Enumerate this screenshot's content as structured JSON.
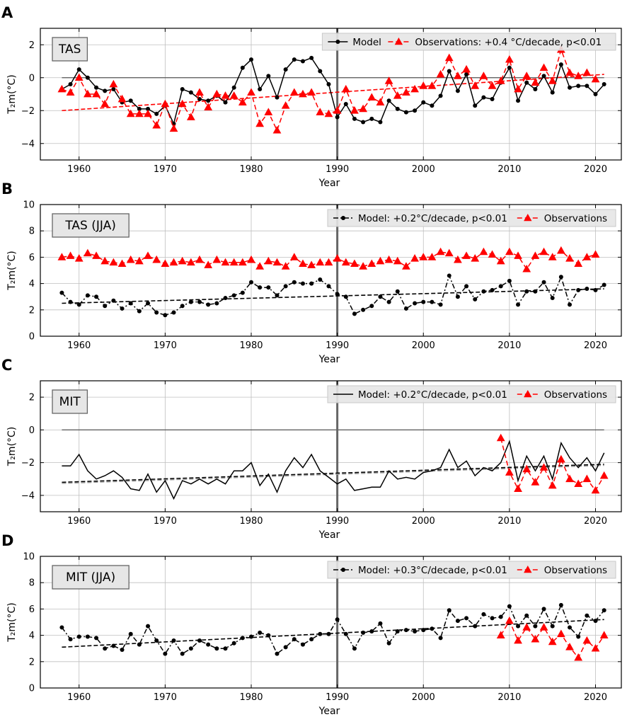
{
  "x_axis_label": "Year",
  "y_axis_label": "T₂m(°C)",
  "colors": {
    "model": "#000000",
    "observations": "#ff0000",
    "vline": "#666666",
    "grid": "#bfbfbf"
  },
  "chart_data": [
    {
      "panel": "A",
      "tag": "TAS",
      "type": "line",
      "xlabel": "Year",
      "ylabel": "T₂m(°C)",
      "xlim": [
        1955.5,
        2023
      ],
      "ylim": [
        -5,
        3
      ],
      "xticks": [
        1960,
        1970,
        1980,
        1990,
        2000,
        2010,
        2020
      ],
      "yticks": [
        -4,
        -2,
        0,
        2
      ],
      "zero_line": true,
      "vline": 1990,
      "legend": [
        "Model",
        "Observations: +0.4 °C/decade, p<0.01"
      ],
      "legend_placement": "top-right",
      "x": [
        1958,
        1959,
        1960,
        1961,
        1962,
        1963,
        1964,
        1965,
        1966,
        1967,
        1968,
        1969,
        1970,
        1971,
        1972,
        1973,
        1974,
        1975,
        1976,
        1977,
        1978,
        1979,
        1980,
        1981,
        1982,
        1983,
        1984,
        1985,
        1986,
        1987,
        1988,
        1989,
        1990,
        1991,
        1992,
        1993,
        1994,
        1995,
        1996,
        1997,
        1998,
        1999,
        2000,
        2001,
        2002,
        2003,
        2004,
        2005,
        2006,
        2007,
        2008,
        2009,
        2010,
        2011,
        2012,
        2013,
        2014,
        2015,
        2016,
        2017,
        2018,
        2019,
        2020,
        2021
      ],
      "series": [
        {
          "name": "Model",
          "style": "solid",
          "marker": "circle",
          "values": [
            -0.7,
            -0.4,
            0.5,
            0.0,
            -0.6,
            -0.8,
            -0.7,
            -1.5,
            -1.4,
            -1.9,
            -1.9,
            -2.2,
            -1.7,
            -2.8,
            -0.7,
            -0.9,
            -1.3,
            -1.4,
            -1.1,
            -1.5,
            -0.6,
            0.6,
            1.1,
            -0.7,
            0.1,
            -1.2,
            0.5,
            1.1,
            1.0,
            1.2,
            0.4,
            -0.4,
            -2.4,
            -1.6,
            -2.5,
            -2.7,
            -2.5,
            -2.7,
            -1.4,
            -1.9,
            -2.1,
            -2.0,
            -1.5,
            -1.7,
            -1.1,
            0.4,
            -0.8,
            0.2,
            -1.7,
            -1.2,
            -1.3,
            -0.3,
            0.6,
            -1.4,
            -0.3,
            -0.7,
            0.1,
            -0.9,
            0.8,
            -0.6,
            -0.5,
            -0.5,
            -1.0,
            -0.4
          ]
        },
        {
          "name": "Observations",
          "style": "dashed",
          "marker": "triangle",
          "values": [
            -0.7,
            -0.9,
            0.0,
            -1.0,
            -1.0,
            -1.6,
            -0.4,
            -1.3,
            -2.2,
            -2.2,
            -2.2,
            -2.9,
            -1.6,
            -3.1,
            -1.6,
            -2.4,
            -0.9,
            -1.8,
            -1.0,
            -1.1,
            -1.1,
            -1.5,
            -0.9,
            -2.8,
            -2.1,
            -3.2,
            -1.7,
            -0.9,
            -1.0,
            -0.9,
            -2.1,
            -2.2,
            -2.0,
            -0.7,
            -2.0,
            -1.9,
            -1.2,
            -1.5,
            -0.2,
            -1.1,
            -0.9,
            -0.7,
            -0.5,
            -0.5,
            0.2,
            1.2,
            0.1,
            0.5,
            -0.5,
            0.1,
            -0.5,
            -0.2,
            1.1,
            -0.7,
            0.1,
            -0.3,
            0.6,
            -0.2,
            1.7,
            0.3,
            0.1,
            0.3,
            -0.1,
            null
          ]
        }
      ],
      "trend": {
        "series": "Observations",
        "start": [
          1958,
          -2.0
        ],
        "end": [
          2021,
          0.2
        ]
      }
    },
    {
      "panel": "B",
      "tag": "TAS (JJA)",
      "type": "line",
      "xlabel": "Year",
      "ylabel": "T₂m(°C)",
      "xlim": [
        1955.5,
        2023
      ],
      "ylim": [
        0,
        10
      ],
      "xticks": [
        1960,
        1970,
        1980,
        1990,
        2000,
        2010,
        2020
      ],
      "yticks": [
        0,
        2,
        4,
        6,
        8,
        10
      ],
      "zero_line": false,
      "vline": 1990,
      "legend": [
        "Model: +0.2°C/decade, p<0.01",
        "Observations"
      ],
      "legend_placement": "top-right",
      "x": [
        1958,
        1959,
        1960,
        1961,
        1962,
        1963,
        1964,
        1965,
        1966,
        1967,
        1968,
        1969,
        1970,
        1971,
        1972,
        1973,
        1974,
        1975,
        1976,
        1977,
        1978,
        1979,
        1980,
        1981,
        1982,
        1983,
        1984,
        1985,
        1986,
        1987,
        1988,
        1989,
        1990,
        1991,
        1992,
        1993,
        1994,
        1995,
        1996,
        1997,
        1998,
        1999,
        2000,
        2001,
        2002,
        2003,
        2004,
        2005,
        2006,
        2007,
        2008,
        2009,
        2010,
        2011,
        2012,
        2013,
        2014,
        2015,
        2016,
        2017,
        2018,
        2019,
        2020,
        2021
      ],
      "series": [
        {
          "name": "Model",
          "style": "dashdot",
          "marker": "circle",
          "values": [
            3.3,
            2.6,
            2.4,
            3.1,
            3.0,
            2.3,
            2.7,
            2.1,
            2.5,
            1.9,
            2.5,
            1.8,
            1.6,
            1.8,
            2.3,
            2.6,
            2.6,
            2.4,
            2.5,
            2.9,
            3.1,
            3.3,
            4.1,
            3.7,
            3.7,
            3.1,
            3.8,
            4.1,
            4.0,
            4.0,
            4.3,
            3.8,
            3.2,
            3.0,
            1.7,
            2.0,
            2.3,
            3.0,
            2.6,
            3.4,
            2.1,
            2.5,
            2.6,
            2.6,
            2.4,
            4.6,
            3.0,
            3.8,
            2.8,
            3.4,
            3.5,
            3.8,
            4.2,
            2.4,
            3.4,
            3.4,
            4.1,
            2.9,
            4.5,
            2.4,
            3.5,
            3.6,
            3.5,
            3.9
          ]
        },
        {
          "name": "Observations",
          "style": "dashed",
          "marker": "triangle",
          "values": [
            6.0,
            6.1,
            5.9,
            6.3,
            6.1,
            5.7,
            5.6,
            5.5,
            5.8,
            5.7,
            6.1,
            5.8,
            5.5,
            5.6,
            5.7,
            5.6,
            5.8,
            5.4,
            5.8,
            5.6,
            5.6,
            5.6,
            5.8,
            5.3,
            5.7,
            5.6,
            5.3,
            6.0,
            5.5,
            5.4,
            5.6,
            5.6,
            5.9,
            5.6,
            5.5,
            5.3,
            5.5,
            5.7,
            5.8,
            5.7,
            5.3,
            5.9,
            6.0,
            6.0,
            6.4,
            6.3,
            5.8,
            6.1,
            5.9,
            6.4,
            6.2,
            5.7,
            6.4,
            6.1,
            5.1,
            6.1,
            6.4,
            6.0,
            6.5,
            5.9,
            5.5,
            6.0,
            6.2,
            null
          ]
        }
      ],
      "trend": {
        "series": "Model",
        "start": [
          1958,
          2.5
        ],
        "end": [
          2021,
          3.6
        ]
      }
    },
    {
      "panel": "C",
      "tag": "MIT",
      "type": "line",
      "xlabel": "Year",
      "ylabel": "T₂m(°C)",
      "xlim": [
        1955.5,
        2023
      ],
      "ylim": [
        -5,
        3
      ],
      "xticks": [
        1960,
        1970,
        1980,
        1990,
        2000,
        2010,
        2020
      ],
      "yticks": [
        -4,
        -2,
        0,
        2
      ],
      "zero_line": true,
      "vline": 1990,
      "legend": [
        "Model: +0.2°C/decade, p<0.01",
        "Observations"
      ],
      "legend_placement": "top-right",
      "x": [
        1958,
        1959,
        1960,
        1961,
        1962,
        1963,
        1964,
        1965,
        1966,
        1967,
        1968,
        1969,
        1970,
        1971,
        1972,
        1973,
        1974,
        1975,
        1976,
        1977,
        1978,
        1979,
        1980,
        1981,
        1982,
        1983,
        1984,
        1985,
        1986,
        1987,
        1988,
        1989,
        1990,
        1991,
        1992,
        1993,
        1994,
        1995,
        1996,
        1997,
        1998,
        1999,
        2000,
        2001,
        2002,
        2003,
        2004,
        2005,
        2006,
        2007,
        2008,
        2009,
        2010,
        2011,
        2012,
        2013,
        2014,
        2015,
        2016,
        2017,
        2018,
        2019,
        2020,
        2021
      ],
      "series": [
        {
          "name": "Model",
          "style": "solid",
          "marker": "none",
          "values": [
            -2.2,
            -2.2,
            -1.5,
            -2.5,
            -3.0,
            -2.8,
            -2.5,
            -2.9,
            -3.6,
            -3.7,
            -2.7,
            -3.8,
            -3.1,
            -4.2,
            -3.1,
            -3.3,
            -3.0,
            -3.3,
            -3.0,
            -3.3,
            -2.5,
            -2.5,
            -2.0,
            -3.4,
            -2.7,
            -3.8,
            -2.5,
            -1.7,
            -2.3,
            -1.5,
            -2.5,
            -2.9,
            -3.3,
            -3.0,
            -3.7,
            -3.6,
            -3.5,
            -3.5,
            -2.5,
            -3.0,
            -2.9,
            -3.0,
            -2.6,
            -2.5,
            -2.3,
            -1.2,
            -2.3,
            -1.9,
            -2.8,
            -2.3,
            -2.5,
            -2.0,
            -0.7,
            -3.1,
            -1.6,
            -2.5,
            -1.6,
            -3.0,
            -0.8,
            -1.7,
            -2.3,
            -1.7,
            -2.5,
            -1.4
          ]
        },
        {
          "name": "Observations",
          "style": "dashed",
          "marker": "triangle",
          "values": [
            null,
            null,
            null,
            null,
            null,
            null,
            null,
            null,
            null,
            null,
            null,
            null,
            null,
            null,
            null,
            null,
            null,
            null,
            null,
            null,
            null,
            null,
            null,
            null,
            null,
            null,
            null,
            null,
            null,
            null,
            null,
            null,
            null,
            null,
            null,
            null,
            null,
            null,
            null,
            null,
            null,
            null,
            null,
            null,
            null,
            null,
            null,
            null,
            null,
            null,
            null,
            -0.5,
            -2.6,
            -3.6,
            -2.4,
            -3.2,
            -2.3,
            -3.4,
            -1.8,
            -3.0,
            -3.3,
            -3.0,
            -3.7,
            -2.8
          ]
        }
      ],
      "trend": {
        "series": "Model",
        "start": [
          1958,
          -3.2
        ],
        "end": [
          2021,
          -2.1
        ]
      }
    },
    {
      "panel": "D",
      "tag": "MIT (JJA)",
      "type": "line",
      "xlabel": "Year",
      "ylabel": "T₂m(°C)",
      "xlim": [
        1955.5,
        2023
      ],
      "ylim": [
        0,
        10
      ],
      "xticks": [
        1960,
        1970,
        1980,
        1990,
        2000,
        2010,
        2020
      ],
      "yticks": [
        0,
        2,
        4,
        6,
        8,
        10
      ],
      "zero_line": false,
      "vline": 1990,
      "legend": [
        "Model: +0.3°C/decade, p<0.01",
        "Observations"
      ],
      "legend_placement": "top-right",
      "x": [
        1958,
        1959,
        1960,
        1961,
        1962,
        1963,
        1964,
        1965,
        1966,
        1967,
        1968,
        1969,
        1970,
        1971,
        1972,
        1973,
        1974,
        1975,
        1976,
        1977,
        1978,
        1979,
        1980,
        1981,
        1982,
        1983,
        1984,
        1985,
        1986,
        1987,
        1988,
        1989,
        1990,
        1991,
        1992,
        1993,
        1994,
        1995,
        1996,
        1997,
        1998,
        1999,
        2000,
        2001,
        2002,
        2003,
        2004,
        2005,
        2006,
        2007,
        2008,
        2009,
        2010,
        2011,
        2012,
        2013,
        2014,
        2015,
        2016,
        2017,
        2018,
        2019,
        2020,
        2021
      ],
      "series": [
        {
          "name": "Model",
          "style": "dashdot",
          "marker": "circle",
          "values": [
            4.6,
            3.7,
            3.9,
            3.9,
            3.8,
            3.0,
            3.2,
            2.9,
            4.1,
            3.3,
            4.7,
            3.6,
            2.6,
            3.6,
            2.6,
            3.0,
            3.6,
            3.3,
            3.0,
            3.0,
            3.4,
            3.8,
            3.9,
            4.2,
            4.0,
            2.6,
            3.1,
            3.7,
            3.3,
            3.7,
            4.1,
            4.1,
            5.2,
            4.1,
            3.0,
            4.2,
            4.3,
            4.9,
            3.4,
            4.3,
            4.4,
            4.3,
            4.4,
            4.5,
            3.8,
            5.9,
            5.1,
            5.3,
            4.7,
            5.6,
            5.3,
            5.4,
            6.2,
            4.7,
            5.5,
            4.7,
            6.0,
            4.7,
            6.3,
            4.6,
            3.9,
            5.5,
            5.1,
            5.9
          ]
        },
        {
          "name": "Observations",
          "style": "dashed",
          "marker": "triangle",
          "values": [
            null,
            null,
            null,
            null,
            null,
            null,
            null,
            null,
            null,
            null,
            null,
            null,
            null,
            null,
            null,
            null,
            null,
            null,
            null,
            null,
            null,
            null,
            null,
            null,
            null,
            null,
            null,
            null,
            null,
            null,
            null,
            null,
            null,
            null,
            null,
            null,
            null,
            null,
            null,
            null,
            null,
            null,
            null,
            null,
            null,
            null,
            null,
            null,
            null,
            null,
            null,
            4.0,
            5.1,
            3.6,
            4.6,
            3.7,
            4.6,
            3.5,
            4.1,
            3.1,
            2.3,
            3.6,
            3.0,
            4.0
          ]
        }
      ],
      "trend": {
        "series": "Model",
        "start": [
          1958,
          3.1
        ],
        "end": [
          2021,
          5.2
        ]
      }
    }
  ]
}
